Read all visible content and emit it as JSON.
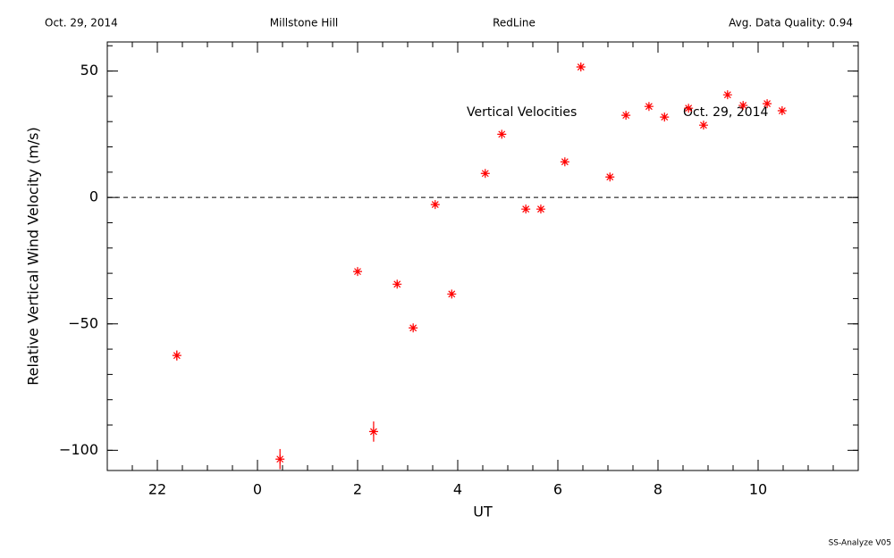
{
  "header": {
    "date": "Oct. 29, 2014",
    "site": "Millstone Hill",
    "instrument": "RedLine",
    "quality": "Avg. Data Quality: 0.94"
  },
  "footer": "SS-Analyze V05",
  "chart_data": {
    "type": "scatter",
    "xlabel": "UT",
    "ylabel": "Relative Vertical Wind Velocity (m/s)",
    "annotations": [
      "Vertical Velocities",
      "Oct. 29, 2014"
    ],
    "color": "#ff0000",
    "x": [
      -1.61,
      0.45,
      2.0,
      2.32,
      2.79,
      3.11,
      3.55,
      3.88,
      4.55,
      4.88,
      5.36,
      5.66,
      6.14,
      6.46,
      7.04,
      7.36,
      7.82,
      8.13,
      8.61,
      8.91,
      9.39,
      9.7,
      10.18,
      10.48
    ],
    "values": [
      -62.5,
      -103.5,
      -29.3,
      -92.6,
      -34.3,
      -51.6,
      -2.8,
      -38.2,
      9.5,
      25,
      -4.6,
      -4.6,
      14.1,
      51.6,
      8.1,
      32.5,
      36,
      31.8,
      35.3,
      28.6,
      40.6,
      36.4,
      37.1,
      34.3
    ],
    "errors": [
      2,
      4,
      1,
      4,
      1,
      1,
      1,
      1,
      1,
      1,
      1,
      1,
      1,
      1,
      1,
      1,
      1,
      1,
      1,
      1,
      1,
      1,
      1,
      1
    ],
    "reference_line": 0,
    "xlim": [
      -3,
      12
    ],
    "ylim": [
      -108,
      61.5
    ],
    "xticks": [
      {
        "value": -2,
        "label": "22"
      },
      0,
      2,
      4,
      6,
      8,
      10
    ],
    "yticks": [
      {
        "value": -100,
        "label": "−100"
      },
      {
        "value": -50,
        "label": "−50"
      },
      0,
      50
    ],
    "xminor": 0.5,
    "yminor": 10
  }
}
